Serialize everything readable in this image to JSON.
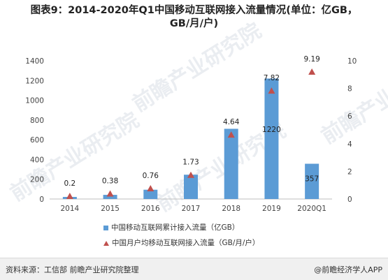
{
  "title_line1": "图表9：2014-2020年Q1中国移动互联网接入流量情况(单位：亿GB，",
  "title_line2": "GB/月/户)",
  "chart_data": {
    "type": "bar",
    "categories": [
      "2014",
      "2015",
      "2016",
      "2017",
      "2018",
      "2019",
      "2020Q1"
    ],
    "series": [
      {
        "name": "中国移动互联网累计接入流量（亿GB）",
        "type": "bar",
        "axis": "left",
        "values": [
          21,
          42,
          94,
          246,
          711,
          1220,
          357
        ],
        "color": "#5b9bd5",
        "value_labels": [
          "",
          "",
          "",
          "",
          "",
          "1220",
          "357"
        ]
      },
      {
        "name": "中国月户均移动互联网接入流量（GB/月/户）",
        "type": "scatter",
        "axis": "right",
        "values": [
          0.2,
          0.38,
          0.76,
          1.73,
          4.64,
          7.82,
          9.19
        ],
        "color": "#c0504d",
        "marker": "triangle",
        "value_labels": [
          "0.2",
          "0.38",
          "0.76",
          "1.73",
          "4.64",
          "7.82",
          "9.19"
        ]
      }
    ],
    "y_left": {
      "min": 0,
      "max": 1400,
      "ticks": [
        "0",
        "200",
        "400",
        "600",
        "800",
        "1000",
        "1200",
        "1400"
      ]
    },
    "y_right": {
      "min": 0,
      "max": 10,
      "ticks": [
        "0",
        "2",
        "4",
        "6",
        "8",
        "10"
      ]
    },
    "grid": false,
    "legend_position": "bottom"
  },
  "legend": {
    "bar_label": "中国移动互联网累计接入流量（亿GB）",
    "triangle_label": "中国月户均移动互联网接入流量（GB/月/户）"
  },
  "footer": {
    "source": "资料来源：工信部 前瞻产业研究院整理",
    "brand": "@前瞻经济学人APP"
  },
  "watermark": "前瞻产业研究院"
}
